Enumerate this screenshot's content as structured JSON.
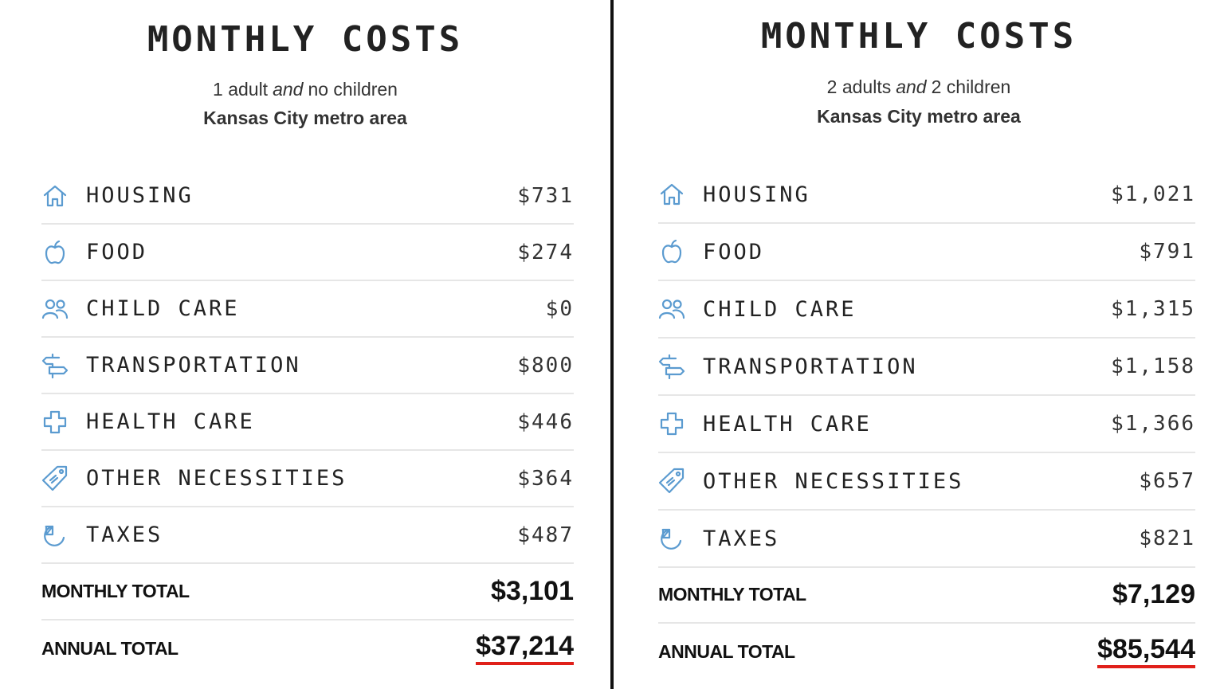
{
  "colors": {
    "icon": "#5b9bd0",
    "accent_underline": "#e0201a",
    "divider": "#111111"
  },
  "panels": [
    {
      "title": "MONTHLY COSTS",
      "adults": "1 adult",
      "and": "and",
      "children": "no children",
      "area": "Kansas City metro area",
      "items": [
        {
          "icon": "house-icon",
          "label": "HOUSING",
          "value": "$731"
        },
        {
          "icon": "apple-icon",
          "label": "FOOD",
          "value": "$274"
        },
        {
          "icon": "people-icon",
          "label": "CHILD CARE",
          "value": "$0"
        },
        {
          "icon": "signpost-icon",
          "label": "TRANSPORTATION",
          "value": "$800"
        },
        {
          "icon": "medical-cross-icon",
          "label": "HEALTH CARE",
          "value": "$446"
        },
        {
          "icon": "tag-icon",
          "label": "OTHER NECESSITIES",
          "value": "$364"
        },
        {
          "icon": "pie-chart-icon",
          "label": "TAXES",
          "value": "$487"
        }
      ],
      "monthly_total_label": "MONTHLY TOTAL",
      "monthly_total": "$3,101",
      "annual_total_label": "ANNUAL TOTAL",
      "annual_total": "$37,214"
    },
    {
      "title": "MONTHLY COSTS",
      "adults": "2 adults",
      "and": "and",
      "children": "2 children",
      "area": "Kansas City metro area",
      "items": [
        {
          "icon": "house-icon",
          "label": "HOUSING",
          "value": "$1,021"
        },
        {
          "icon": "apple-icon",
          "label": "FOOD",
          "value": "$791"
        },
        {
          "icon": "people-icon",
          "label": "CHILD CARE",
          "value": "$1,315"
        },
        {
          "icon": "signpost-icon",
          "label": "TRANSPORTATION",
          "value": "$1,158"
        },
        {
          "icon": "medical-cross-icon",
          "label": "HEALTH CARE",
          "value": "$1,366"
        },
        {
          "icon": "tag-icon",
          "label": "OTHER NECESSITIES",
          "value": "$657"
        },
        {
          "icon": "pie-chart-icon",
          "label": "TAXES",
          "value": "$821"
        }
      ],
      "monthly_total_label": "MONTHLY TOTAL",
      "monthly_total": "$7,129",
      "annual_total_label": "ANNUAL TOTAL",
      "annual_total": "$85,544"
    }
  ]
}
